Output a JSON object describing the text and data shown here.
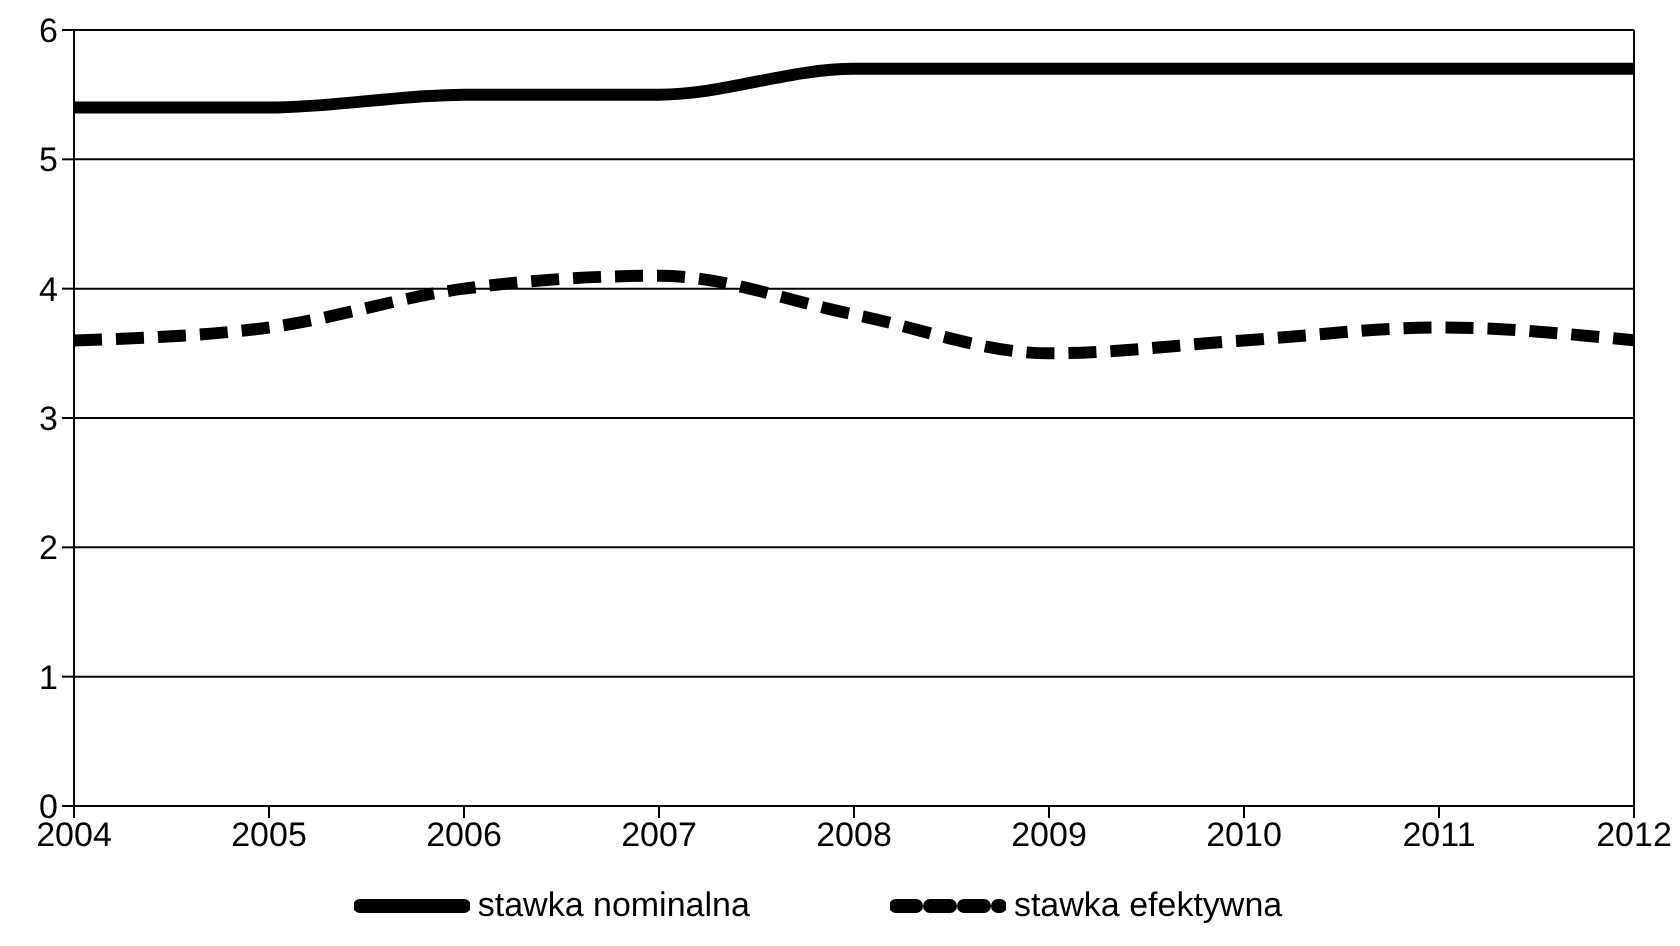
{
  "chart_data": {
    "type": "line",
    "x": [
      2004,
      2005,
      2006,
      2007,
      2008,
      2009,
      2010,
      2011,
      2012
    ],
    "series": [
      {
        "name": "stawka nominalna",
        "color": "#000000",
        "line_style": "solid",
        "values": [
          5.4,
          5.4,
          5.5,
          5.5,
          5.7,
          5.7,
          5.7,
          5.7,
          5.7
        ]
      },
      {
        "name": "stawka efektywna",
        "color": "#000000",
        "line_style": "dashed",
        "values": [
          3.6,
          3.7,
          4.0,
          4.1,
          3.8,
          3.5,
          3.6,
          3.7,
          3.6
        ]
      }
    ],
    "xlim": [
      2004,
      2012
    ],
    "xticks": [
      2004,
      2005,
      2006,
      2007,
      2008,
      2009,
      2010,
      2011,
      2012
    ],
    "ylim": [
      0,
      6
    ],
    "yticks": [
      0,
      1,
      2,
      3,
      4,
      5,
      6
    ],
    "grid": "y",
    "legend": "bottom",
    "marker": "none"
  }
}
